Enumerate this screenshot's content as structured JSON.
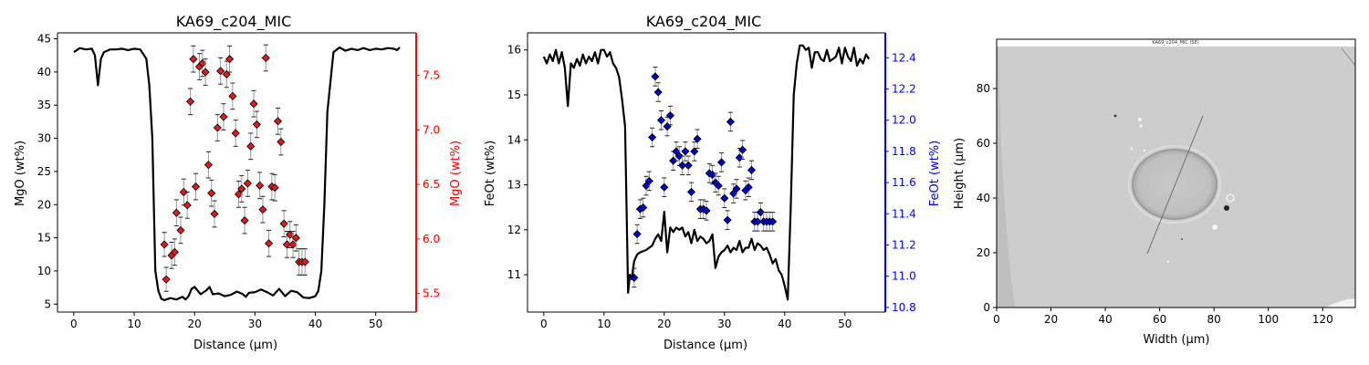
{
  "chart_data": [
    {
      "type": "line",
      "title": "KA69_c204_MIC",
      "xlabel": "Distance (µm)",
      "ylabel": "MgO (wt%)",
      "y2label": "MgO (wt%)",
      "xlim": [
        -2.7,
        56.7
      ],
      "ylim": [
        3.8,
        45.9
      ],
      "y2lim": [
        5.33,
        7.89
      ],
      "xticks": [
        0,
        10,
        20,
        30,
        40,
        50
      ],
      "yticks": [
        5,
        10,
        15,
        20,
        25,
        30,
        35,
        40,
        45
      ],
      "y2ticks": [
        5.5,
        6.0,
        6.5,
        7.0,
        7.5
      ],
      "colors": {
        "line": "#000000",
        "marker": "#e31a1c",
        "axis2": "#ff0000"
      },
      "series": [
        {
          "axis": "left",
          "style": "line",
          "x": [
            0,
            1,
            2,
            3,
            3.5,
            4,
            4.5,
            5,
            6,
            7,
            8,
            9,
            10,
            11,
            12,
            12.5,
            13,
            13.5,
            14,
            14.5,
            15,
            16,
            17,
            18,
            18.5,
            19,
            19.5,
            20,
            21,
            22,
            22.5,
            23,
            24,
            25,
            26,
            27,
            28,
            28.5,
            29,
            30,
            31,
            32,
            33,
            34,
            35,
            36,
            37,
            38,
            39,
            40,
            40.5,
            41,
            41.5,
            42,
            43,
            44,
            45,
            46,
            47,
            48,
            49,
            50,
            51,
            52,
            53,
            53.5,
            54
          ],
          "y": [
            43,
            43.6,
            43.4,
            43.5,
            42.5,
            38,
            42,
            43,
            43.4,
            43.4,
            43.5,
            43.3,
            43.5,
            43.4,
            42,
            38,
            30,
            10,
            7,
            5.8,
            5.6,
            5.9,
            5.7,
            6.1,
            5.7,
            6.2,
            7.3,
            7.6,
            6.5,
            7.1,
            7.6,
            6.5,
            6.6,
            6.2,
            6.4,
            6.9,
            6.5,
            6.1,
            6.7,
            6.8,
            7.2,
            6.8,
            6.3,
            7.3,
            6.2,
            7.0,
            6.8,
            6.0,
            5.9,
            6.2,
            7.0,
            10,
            20,
            34,
            43,
            43.7,
            43.2,
            43.5,
            43.3,
            43.6,
            43.3,
            43.5,
            43.4,
            43.6,
            43.5,
            43.3,
            43.7
          ]
        },
        {
          "axis": "right",
          "style": "markers",
          "x": [
            15,
            15.3,
            16.2,
            16.7,
            17,
            17.7,
            18.2,
            18.8,
            19.3,
            19.8,
            20.2,
            20.8,
            21.3,
            21.8,
            22.3,
            22.8,
            23.3,
            23.8,
            24.3,
            24.8,
            25.3,
            25.8,
            26.3,
            26.8,
            27.3,
            27.8,
            28.3,
            28.8,
            29.3,
            29.8,
            30.3,
            30.8,
            31.3,
            31.8,
            32.3,
            32.8,
            33.3,
            33.8,
            34.3,
            34.8,
            35.3,
            35.8,
            36.3,
            36.8,
            37.3,
            37.8,
            38.3
          ],
          "y": [
            5.95,
            5.63,
            5.85,
            5.88,
            6.24,
            6.08,
            6.43,
            6.31,
            7.26,
            7.65,
            6.48,
            7.58,
            7.61,
            7.53,
            6.68,
            6.42,
            6.23,
            7.02,
            7.54,
            7.12,
            7.51,
            7.65,
            7.31,
            6.97,
            6.41,
            6.46,
            6.17,
            6.51,
            6.85,
            7.24,
            7.05,
            6.49,
            6.27,
            7.66,
            5.96,
            6.48,
            6.47,
            7.08,
            6.89,
            6.14,
            5.95,
            6.04,
            5.95,
            6.01,
            5.79,
            5.79,
            5.79
          ],
          "yerr": [
            0.11,
            0.11,
            0.12,
            0.12,
            0.12,
            0.12,
            0.12,
            0.12,
            0.12,
            0.12,
            0.12,
            0.12,
            0.12,
            0.12,
            0.12,
            0.12,
            0.12,
            0.12,
            0.12,
            0.12,
            0.12,
            0.12,
            0.12,
            0.12,
            0.12,
            0.12,
            0.12,
            0.12,
            0.12,
            0.12,
            0.12,
            0.12,
            0.12,
            0.12,
            0.12,
            0.12,
            0.12,
            0.12,
            0.12,
            0.12,
            0.12,
            0.12,
            0.12,
            0.12,
            0.12,
            0.12,
            0.12
          ]
        }
      ]
    },
    {
      "type": "line",
      "title": "KA69_c204_MIC",
      "xlabel": "Distance (µm)",
      "ylabel": "FeOt (wt%)",
      "y2label": "FeOt (wt%)",
      "xlim": [
        -2.7,
        56.7
      ],
      "ylim": [
        10.17,
        16.38
      ],
      "y2lim": [
        10.77,
        12.56
      ],
      "xticks": [
        0,
        10,
        20,
        30,
        40,
        50
      ],
      "yticks": [
        11,
        12,
        13,
        14,
        15,
        16
      ],
      "y2ticks": [
        10.8,
        11.0,
        11.2,
        11.4,
        11.6,
        11.8,
        12.0,
        12.2,
        12.4
      ],
      "colors": {
        "line": "#000000",
        "marker": "#0000cd",
        "axis2": "#0000ff"
      },
      "series": [
        {
          "axis": "left",
          "style": "line",
          "x": [
            0,
            0.5,
            1,
            1.5,
            2,
            2.5,
            3,
            3.5,
            4,
            4.5,
            5,
            5.5,
            6,
            6.5,
            7,
            7.5,
            8,
            8.5,
            9,
            9.5,
            10,
            10.5,
            11,
            11.5,
            12,
            12.5,
            13,
            13.5,
            14,
            14.3,
            14.6,
            15,
            15.5,
            16,
            17,
            17.5,
            18,
            18.5,
            19,
            19.5,
            20,
            20.5,
            21,
            21.5,
            22,
            22.5,
            23,
            23.5,
            24,
            24.5,
            25,
            25.5,
            26,
            26.5,
            27,
            27.5,
            28,
            28.5,
            29,
            29.5,
            30,
            30.5,
            31,
            31.5,
            32,
            32.5,
            33,
            33.5,
            34,
            34.5,
            35,
            35.5,
            36,
            36.5,
            37,
            37.5,
            38,
            38.5,
            39,
            39.5,
            40,
            40.5,
            41,
            41.5,
            42,
            42.5,
            43,
            43.5,
            44,
            44.5,
            45,
            45.5,
            46,
            46.5,
            47,
            47.5,
            48,
            48.5,
            49,
            49.5,
            50,
            50.5,
            51,
            51.5,
            52,
            52.5,
            53,
            53.5,
            54
          ],
          "y": [
            15.85,
            15.7,
            15.9,
            15.75,
            16,
            15.7,
            15.95,
            15.6,
            14.75,
            15.7,
            15.6,
            15.8,
            15.65,
            15.9,
            15.7,
            15.85,
            15.75,
            15.95,
            15.7,
            16,
            16,
            15.85,
            15.95,
            15.7,
            15.6,
            15.4,
            14.9,
            14.3,
            10.6,
            11.0,
            10.9,
            11.3,
            11.45,
            11.5,
            11.55,
            11.6,
            11.65,
            11.8,
            11.9,
            11.75,
            12.4,
            11.5,
            12.05,
            11.95,
            12.05,
            12.0,
            12.05,
            11.85,
            11.95,
            11.7,
            12.0,
            11.75,
            11.85,
            11.8,
            11.7,
            11.75,
            11.9,
            11.15,
            11.4,
            11.5,
            11.55,
            11.65,
            11.5,
            11.6,
            11.55,
            11.75,
            11.5,
            11.6,
            11.6,
            11.8,
            11.55,
            11.7,
            11.65,
            11.55,
            11.6,
            11.45,
            11.25,
            11.35,
            11.1,
            11.0,
            10.75,
            10.45,
            12.5,
            15.0,
            15.7,
            16.1,
            16.1,
            16.0,
            16.05,
            15.6,
            15.95,
            15.95,
            15.8,
            15.75,
            16.0,
            15.75,
            15.8,
            15.85,
            16.05,
            15.7,
            16.05,
            15.85,
            15.75,
            16.05,
            15.65,
            15.8,
            15.7,
            15.9,
            15.8
          ]
        },
        {
          "axis": "right",
          "style": "markers",
          "x": [
            15,
            15.5,
            16,
            16.5,
            17,
            17.5,
            18,
            18.5,
            19,
            19.5,
            20,
            20.5,
            21,
            21.5,
            22,
            22.5,
            23,
            23.5,
            24,
            24.5,
            25,
            25.5,
            26,
            26.5,
            27,
            27.5,
            28,
            28.5,
            29,
            29.5,
            30,
            30.5,
            31,
            31.5,
            32,
            32.5,
            33,
            33.5,
            34,
            34.5,
            35,
            35.5,
            36,
            36.5,
            37,
            37.5,
            38
          ],
          "y": [
            10.99,
            11.27,
            11.43,
            11.44,
            11.58,
            11.61,
            11.89,
            12.28,
            12.18,
            12.0,
            11.57,
            11.96,
            12.03,
            11.74,
            11.8,
            11.77,
            11.71,
            11.8,
            11.71,
            11.54,
            11.8,
            11.88,
            11.43,
            11.43,
            11.42,
            11.66,
            11.65,
            11.6,
            11.58,
            11.73,
            11.5,
            11.36,
            11.99,
            11.53,
            11.56,
            11.76,
            11.81,
            11.55,
            11.57,
            11.68,
            11.35,
            11.35,
            11.41,
            11.35,
            11.35,
            11.35,
            11.35
          ],
          "yerr": [
            0.06,
            0.06,
            0.06,
            0.06,
            0.06,
            0.06,
            0.06,
            0.06,
            0.06,
            0.06,
            0.06,
            0.06,
            0.06,
            0.06,
            0.06,
            0.06,
            0.06,
            0.06,
            0.06,
            0.06,
            0.06,
            0.06,
            0.06,
            0.06,
            0.06,
            0.06,
            0.06,
            0.06,
            0.06,
            0.06,
            0.06,
            0.06,
            0.06,
            0.06,
            0.06,
            0.06,
            0.06,
            0.06,
            0.06,
            0.06,
            0.06,
            0.06,
            0.06,
            0.06,
            0.06,
            0.06,
            0.06
          ]
        }
      ]
    },
    {
      "type": "image",
      "title": "",
      "image_caption": "KA69_c204_MIC (SE)",
      "xlabel": "Width (µm)",
      "ylabel": "Height (µm)",
      "xlim": [
        0,
        132
      ],
      "ylim": [
        0,
        98
      ],
      "xticks": [
        0,
        20,
        40,
        60,
        80,
        100,
        120
      ],
      "yticks": [
        0,
        20,
        40,
        60,
        80
      ]
    }
  ]
}
